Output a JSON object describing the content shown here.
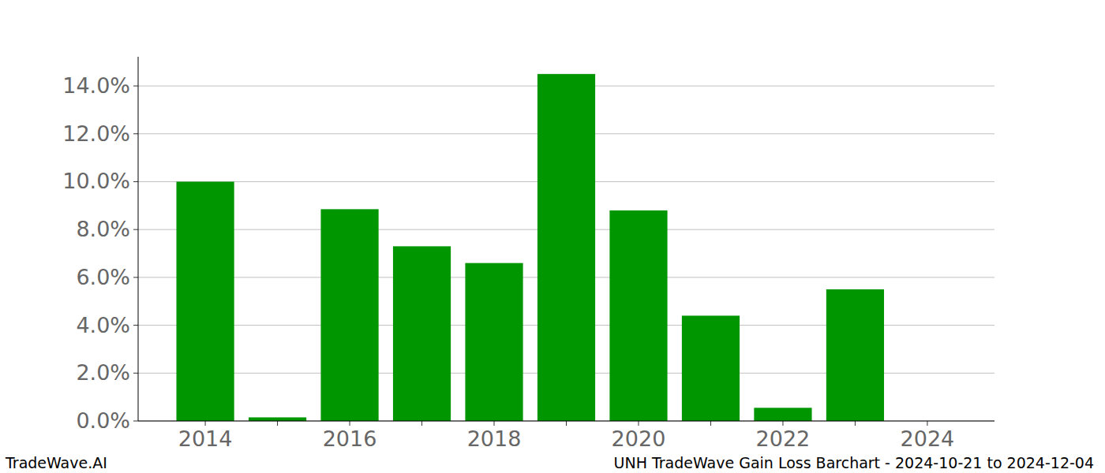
{
  "chart_data": {
    "type": "bar",
    "title": "UNH TradeWave Gain Loss Barchart - 2024-10-21 to 2024-12-04",
    "source": "TradeWave.AI",
    "categories": [
      "2014",
      null,
      "2016",
      null,
      "2018",
      null,
      "2020",
      null,
      "2022",
      null,
      "2024"
    ],
    "values": [
      10.0,
      0.15,
      8.85,
      7.3,
      6.6,
      14.5,
      8.8,
      4.4,
      0.55,
      5.5,
      null
    ],
    "color": "#009600",
    "ylim": [
      0,
      15.22
    ],
    "yticks": [
      {
        "value": 0,
        "label": "0.0%"
      },
      {
        "value": 2,
        "label": "2.0%"
      },
      {
        "value": 4,
        "label": "4.0%"
      },
      {
        "value": 6,
        "label": "6.0%"
      },
      {
        "value": 8,
        "label": "8.0%"
      },
      {
        "value": 10,
        "label": "10.0%"
      },
      {
        "value": 12,
        "label": "12.0%"
      },
      {
        "value": 14,
        "label": "14.0%"
      }
    ],
    "grid": true
  }
}
